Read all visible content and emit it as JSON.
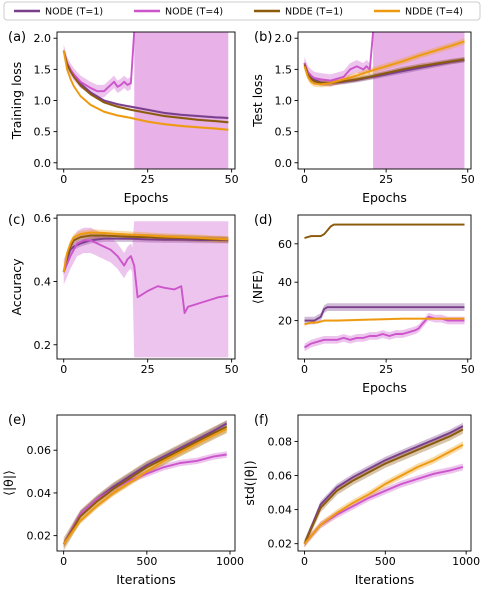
{
  "colors": {
    "NODE (T=1)": "#7a3f8c",
    "NODE (T=4)": "#cc55cc",
    "NDDE (T=1)": "#8b5a0b",
    "NDDE (T=4)": "#ee9a10"
  },
  "legend": [
    "NODE (T=1)",
    "NODE (T=4)",
    "NDDE (T=1)",
    "NDDE (T=4)"
  ],
  "chart_data": [
    {
      "panel": "(a)",
      "type": "line",
      "xlabel": "Epochs",
      "ylabel": "Training loss",
      "xlim": [
        -2,
        51
      ],
      "ylim": [
        -0.1,
        2.1
      ],
      "xticks": [
        0,
        25,
        50
      ],
      "yticks": [
        0.0,
        0.5,
        1.0,
        1.5,
        2.0
      ],
      "shade": {
        "series": "NODE (T=4)",
        "x_start": 21,
        "x_end": 49
      },
      "series": [
        {
          "name": "NODE (T=1)",
          "x": [
            0,
            1,
            2,
            3,
            5,
            8,
            12,
            16,
            20,
            25,
            30,
            35,
            40,
            45,
            49
          ],
          "y": [
            1.8,
            1.6,
            1.5,
            1.4,
            1.27,
            1.13,
            1.0,
            0.94,
            0.9,
            0.85,
            0.8,
            0.77,
            0.75,
            0.73,
            0.72
          ],
          "band": 0.02
        },
        {
          "name": "NODE (T=4)",
          "x": [
            0,
            1,
            2,
            3,
            5,
            8,
            10,
            12,
            14,
            15,
            16,
            17,
            18,
            19,
            20,
            21
          ],
          "y": [
            1.8,
            1.6,
            1.5,
            1.42,
            1.3,
            1.2,
            1.15,
            1.15,
            1.25,
            1.3,
            1.22,
            1.25,
            1.3,
            1.25,
            1.28,
            2.1
          ],
          "band": 0.1
        },
        {
          "name": "NDDE (T=1)",
          "x": [
            0,
            1,
            2,
            3,
            5,
            8,
            12,
            16,
            20,
            25,
            30,
            35,
            40,
            45,
            49
          ],
          "y": [
            1.8,
            1.58,
            1.47,
            1.38,
            1.24,
            1.1,
            0.97,
            0.9,
            0.85,
            0.8,
            0.75,
            0.72,
            0.69,
            0.67,
            0.65
          ],
          "band": 0.02
        },
        {
          "name": "NDDE (T=4)",
          "x": [
            0,
            1,
            2,
            3,
            5,
            8,
            12,
            16,
            20,
            25,
            30,
            35,
            40,
            45,
            49
          ],
          "y": [
            1.8,
            1.5,
            1.35,
            1.23,
            1.07,
            0.93,
            0.82,
            0.76,
            0.72,
            0.66,
            0.62,
            0.59,
            0.57,
            0.55,
            0.53
          ],
          "band": 0.02
        }
      ]
    },
    {
      "panel": "(b)",
      "type": "line",
      "xlabel": "Epochs",
      "ylabel": "Test loss",
      "xlim": [
        -2,
        51
      ],
      "ylim": [
        -0.1,
        2.1
      ],
      "xticks": [
        0,
        25,
        50
      ],
      "yticks": [
        0.0,
        0.5,
        1.0,
        1.5,
        2.0
      ],
      "shade": {
        "series": "NODE (T=4)",
        "x_start": 21,
        "x_end": 49
      },
      "series": [
        {
          "name": "NODE (T=1)",
          "x": [
            0,
            1,
            2,
            3,
            5,
            8,
            12,
            16,
            20,
            25,
            30,
            35,
            40,
            45,
            49
          ],
          "y": [
            1.6,
            1.45,
            1.38,
            1.33,
            1.29,
            1.28,
            1.3,
            1.33,
            1.37,
            1.42,
            1.47,
            1.52,
            1.57,
            1.62,
            1.65
          ],
          "band": 0.04
        },
        {
          "name": "NODE (T=4)",
          "x": [
            0,
            1,
            2,
            3,
            5,
            8,
            10,
            12,
            14,
            16,
            18,
            19,
            20,
            21
          ],
          "y": [
            1.6,
            1.46,
            1.4,
            1.36,
            1.34,
            1.32,
            1.35,
            1.38,
            1.5,
            1.55,
            1.5,
            1.55,
            1.5,
            2.1
          ],
          "band": 0.1
        },
        {
          "name": "NDDE (T=1)",
          "x": [
            0,
            1,
            2,
            3,
            5,
            8,
            12,
            16,
            20,
            25,
            30,
            35,
            40,
            45,
            49
          ],
          "y": [
            1.58,
            1.42,
            1.35,
            1.31,
            1.28,
            1.28,
            1.31,
            1.34,
            1.38,
            1.44,
            1.5,
            1.55,
            1.59,
            1.63,
            1.66
          ],
          "band": 0.04
        },
        {
          "name": "NDDE (T=4)",
          "x": [
            0,
            1,
            2,
            3,
            5,
            8,
            12,
            16,
            20,
            25,
            30,
            35,
            40,
            45,
            49
          ],
          "y": [
            1.55,
            1.38,
            1.3,
            1.27,
            1.26,
            1.28,
            1.34,
            1.4,
            1.47,
            1.55,
            1.63,
            1.72,
            1.8,
            1.88,
            1.95
          ],
          "band": 0.05
        }
      ]
    },
    {
      "panel": "(c)",
      "type": "line",
      "xlabel": "",
      "ylabel": "Accuracy",
      "xlim": [
        -2,
        51
      ],
      "ylim": [
        0.155,
        0.61
      ],
      "xticks": [
        0,
        25,
        50
      ],
      "yticks": [
        0.2,
        0.4,
        0.6
      ],
      "series": [
        {
          "name": "NODE (T=1)",
          "x": [
            0,
            1,
            2,
            3,
            5,
            8,
            12,
            16,
            20,
            25,
            30,
            35,
            40,
            45,
            49
          ],
          "y": [
            0.43,
            0.47,
            0.5,
            0.51,
            0.52,
            0.53,
            0.535,
            0.535,
            0.535,
            0.533,
            0.532,
            0.532,
            0.531,
            0.531,
            0.53
          ],
          "band": 0.01
        },
        {
          "name": "NODE (T=4)",
          "x": [
            0,
            2,
            4,
            6,
            8,
            10,
            12,
            14,
            16,
            18,
            19,
            20,
            21,
            22,
            25,
            28,
            30,
            33,
            35,
            36,
            37,
            40,
            43,
            46,
            49
          ],
          "y": [
            0.43,
            0.48,
            0.52,
            0.53,
            0.53,
            0.52,
            0.51,
            0.5,
            0.48,
            0.45,
            0.47,
            0.48,
            0.45,
            0.35,
            0.37,
            0.385,
            0.38,
            0.375,
            0.385,
            0.3,
            0.32,
            0.33,
            0.34,
            0.35,
            0.355
          ],
          "band": 0.04,
          "band_wide_after": 21,
          "band_wide": [
            0.16,
            0.59
          ]
        },
        {
          "name": "NDDE (T=1)",
          "x": [
            0,
            1,
            2,
            3,
            5,
            8,
            12,
            16,
            20,
            25,
            30,
            35,
            40,
            45,
            49
          ],
          "y": [
            0.43,
            0.48,
            0.51,
            0.53,
            0.54,
            0.545,
            0.545,
            0.543,
            0.541,
            0.54,
            0.538,
            0.537,
            0.535,
            0.533,
            0.532
          ],
          "band": 0.01
        },
        {
          "name": "NDDE (T=4)",
          "x": [
            0,
            1,
            2,
            3,
            5,
            8,
            12,
            16,
            20,
            25,
            30,
            35,
            40,
            45,
            49
          ],
          "y": [
            0.43,
            0.49,
            0.52,
            0.54,
            0.55,
            0.555,
            0.553,
            0.55,
            0.548,
            0.545,
            0.542,
            0.54,
            0.538,
            0.535,
            0.533
          ],
          "band": 0.01
        }
      ]
    },
    {
      "panel": "(d)",
      "type": "line",
      "xlabel": "Epochs",
      "ylabel": "⟨NFE⟩",
      "xlim": [
        -2,
        51
      ],
      "ylim": [
        0,
        75
      ],
      "xticks": [
        0,
        25,
        50
      ],
      "yticks": [
        20,
        40,
        60
      ],
      "series": [
        {
          "name": "NODE (T=1)",
          "x": [
            0,
            1,
            2,
            3,
            4,
            5,
            6,
            7,
            49
          ],
          "y": [
            20,
            20,
            20,
            20,
            21,
            22,
            26,
            27,
            27
          ],
          "band": 2
        },
        {
          "name": "NODE (T=4)",
          "x": [
            0,
            2,
            4,
            6,
            8,
            10,
            12,
            14,
            16,
            18,
            20,
            22,
            24,
            26,
            28,
            30,
            32,
            34,
            35,
            36,
            37,
            38,
            40,
            42,
            44,
            46,
            49
          ],
          "y": [
            6,
            8,
            9,
            10,
            10,
            10,
            11,
            10,
            11,
            11,
            12,
            12,
            13,
            12,
            13,
            13,
            14,
            15,
            16,
            18,
            20,
            22,
            21,
            21,
            20,
            20,
            20
          ],
          "band": 2
        },
        {
          "name": "NDDE (T=1)",
          "x": [
            0,
            2,
            4,
            5,
            6,
            7,
            8,
            9,
            49
          ],
          "y": [
            63,
            64,
            64,
            64,
            65,
            67,
            69,
            70,
            70
          ],
          "band": 0.5
        },
        {
          "name": "NDDE (T=4)",
          "x": [
            0,
            2,
            4,
            6,
            8,
            10,
            20,
            30,
            40,
            49
          ],
          "y": [
            18,
            19,
            19,
            20,
            20,
            20,
            20.5,
            21,
            21,
            21
          ],
          "band": 0.6
        }
      ]
    },
    {
      "panel": "(e)",
      "type": "line",
      "xlabel": "Iterations",
      "ylabel": "⟨|θ|⟩",
      "xlim": [
        -40,
        1030
      ],
      "ylim": [
        0.0128,
        0.0765
      ],
      "xticks": [
        0,
        500,
        1000
      ],
      "yticks": [
        0.02,
        0.04,
        0.06
      ],
      "series": [
        {
          "name": "NODE (T=1)",
          "x": [
            0,
            100,
            200,
            300,
            400,
            500,
            600,
            700,
            800,
            900,
            980
          ],
          "y": [
            0.016,
            0.03,
            0.037,
            0.043,
            0.048,
            0.053,
            0.057,
            0.061,
            0.065,
            0.069,
            0.0725
          ],
          "band": 0.0015
        },
        {
          "name": "NODE (T=4)",
          "x": [
            0,
            100,
            200,
            300,
            400,
            500,
            600,
            700,
            800,
            900,
            980
          ],
          "y": [
            0.016,
            0.03,
            0.037,
            0.042,
            0.046,
            0.049,
            0.052,
            0.054,
            0.055,
            0.057,
            0.058
          ],
          "band": 0.0015
        },
        {
          "name": "NDDE (T=1)",
          "x": [
            0,
            100,
            200,
            300,
            400,
            500,
            600,
            700,
            800,
            900,
            980
          ],
          "y": [
            0.016,
            0.029,
            0.036,
            0.042,
            0.047,
            0.052,
            0.056,
            0.06,
            0.064,
            0.068,
            0.071
          ],
          "band": 0.003
        },
        {
          "name": "NDDE (T=4)",
          "x": [
            0,
            100,
            200,
            300,
            400,
            500,
            600,
            700,
            800,
            900,
            980
          ],
          "y": [
            0.016,
            0.027,
            0.034,
            0.04,
            0.045,
            0.05,
            0.055,
            0.059,
            0.063,
            0.067,
            0.07
          ],
          "band": 0.0015
        }
      ]
    },
    {
      "panel": "(f)",
      "type": "line",
      "xlabel": "Iterations",
      "ylabel": "std(|θ|)",
      "xlim": [
        -40,
        1030
      ],
      "ylim": [
        0.0157,
        0.0955
      ],
      "xticks": [
        0,
        500,
        1000
      ],
      "yticks": [
        0.02,
        0.04,
        0.06,
        0.08
      ],
      "series": [
        {
          "name": "NODE (T=1)",
          "x": [
            0,
            100,
            200,
            300,
            400,
            500,
            600,
            700,
            800,
            900,
            980
          ],
          "y": [
            0.02,
            0.043,
            0.053,
            0.059,
            0.064,
            0.069,
            0.073,
            0.077,
            0.081,
            0.085,
            0.089
          ],
          "band": 0.002
        },
        {
          "name": "NODE (T=4)",
          "x": [
            0,
            100,
            200,
            300,
            400,
            500,
            600,
            700,
            800,
            900,
            980
          ],
          "y": [
            0.02,
            0.031,
            0.037,
            0.042,
            0.047,
            0.051,
            0.055,
            0.058,
            0.061,
            0.063,
            0.065
          ],
          "band": 0.002
        },
        {
          "name": "NDDE (T=1)",
          "x": [
            0,
            100,
            200,
            300,
            400,
            500,
            600,
            700,
            800,
            900,
            980
          ],
          "y": [
            0.02,
            0.041,
            0.051,
            0.057,
            0.062,
            0.067,
            0.071,
            0.075,
            0.079,
            0.083,
            0.087
          ],
          "band": 0.0025
        },
        {
          "name": "NDDE (T=4)",
          "x": [
            0,
            100,
            200,
            300,
            400,
            500,
            600,
            700,
            800,
            900,
            980
          ],
          "y": [
            0.02,
            0.031,
            0.038,
            0.044,
            0.049,
            0.055,
            0.06,
            0.065,
            0.069,
            0.074,
            0.078
          ],
          "band": 0.002
        }
      ]
    }
  ]
}
